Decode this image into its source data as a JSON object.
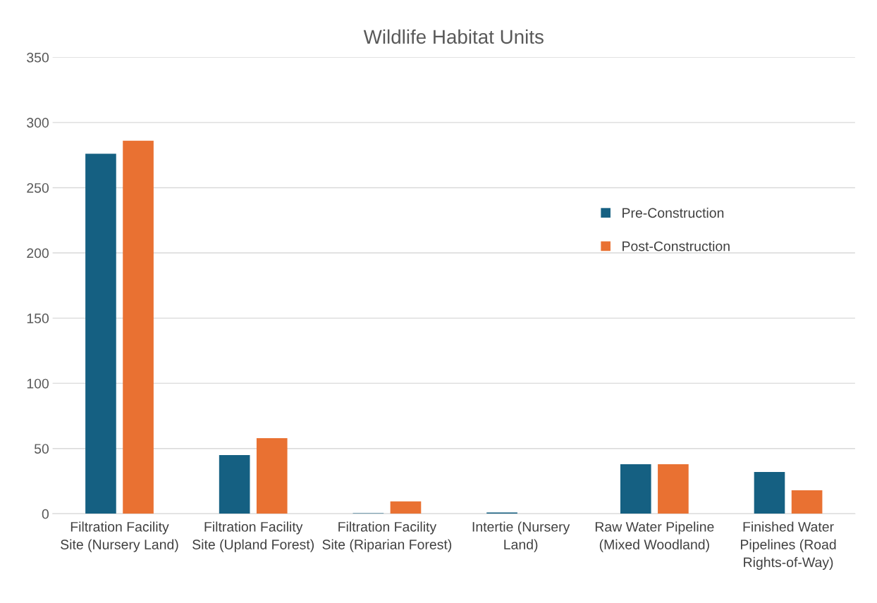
{
  "chart_data": {
    "type": "bar",
    "title": "Wildlife Habitat Units",
    "categories": [
      "Filtration Facility Site (Nursery Land)",
      "Filtration Facility Site (Upland Forest)",
      "Filtration Facility Site (Riparian Forest)",
      "Intertie (Nursery Land)",
      "Raw Water Pipeline (Mixed Woodland)",
      "Finished Water Pipelines (Road Rights-of-Way)"
    ],
    "series": [
      {
        "name": "Pre-Construction",
        "color": "#156082",
        "values": [
          276,
          45,
          0.5,
          1,
          38,
          32
        ]
      },
      {
        "name": "Post-Construction",
        "color": "#e97132",
        "values": [
          286,
          58,
          9.5,
          0,
          38,
          18
        ]
      }
    ],
    "ylim": [
      0,
      350
    ],
    "yticks": [
      0,
      50,
      100,
      150,
      200,
      250,
      300,
      350
    ],
    "grid": "y",
    "legend": "right"
  }
}
